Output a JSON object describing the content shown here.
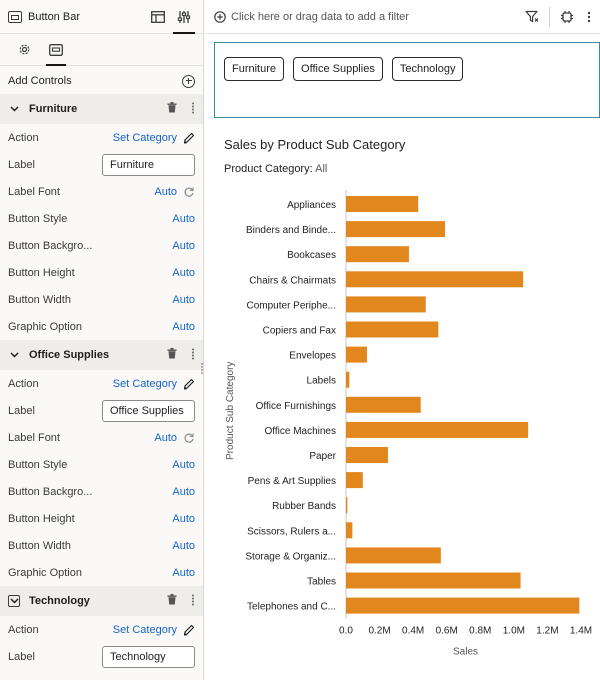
{
  "panel": {
    "title": "Button Bar",
    "add_controls_label": "Add Controls"
  },
  "sections": [
    {
      "name": "Furniture",
      "expanded": true,
      "props": [
        {
          "label": "Action",
          "value": "Set Category",
          "kind": "link-edit"
        },
        {
          "label": "Label",
          "value": "Furniture",
          "kind": "input"
        },
        {
          "label": "Label Font",
          "value": "Auto",
          "kind": "link-reset"
        },
        {
          "label": "Button Style",
          "value": "Auto",
          "kind": "link"
        },
        {
          "label": "Button Backgro...",
          "value": "Auto",
          "kind": "link"
        },
        {
          "label": "Button Height",
          "value": "Auto",
          "kind": "link"
        },
        {
          "label": "Button Width",
          "value": "Auto",
          "kind": "link"
        },
        {
          "label": "Graphic Option",
          "value": "Auto",
          "kind": "link"
        }
      ]
    },
    {
      "name": "Office Supplies",
      "expanded": true,
      "props": [
        {
          "label": "Action",
          "value": "Set Category",
          "kind": "link-edit"
        },
        {
          "label": "Label",
          "value": "Office Supplies",
          "kind": "input"
        },
        {
          "label": "Label Font",
          "value": "Auto",
          "kind": "link-reset"
        },
        {
          "label": "Button Style",
          "value": "Auto",
          "kind": "link"
        },
        {
          "label": "Button Backgro...",
          "value": "Auto",
          "kind": "link"
        },
        {
          "label": "Button Height",
          "value": "Auto",
          "kind": "link"
        },
        {
          "label": "Button Width",
          "value": "Auto",
          "kind": "link"
        },
        {
          "label": "Graphic Option",
          "value": "Auto",
          "kind": "link"
        }
      ]
    },
    {
      "name": "Technology",
      "expanded": true,
      "props": [
        {
          "label": "Action",
          "value": "Set Category",
          "kind": "link-edit"
        },
        {
          "label": "Label",
          "value": "Technology",
          "kind": "input"
        }
      ]
    }
  ],
  "filter_bar": {
    "placeholder": "Click here or drag data to add a filter"
  },
  "button_bar": {
    "buttons": [
      "Furniture",
      "Office Supplies",
      "Technology"
    ]
  },
  "chart": {
    "title": "Sales by Product Sub Category",
    "filter_label": "Product Category:",
    "filter_value": "All"
  },
  "colors": {
    "bar": "#e2861e",
    "link": "#1464c8",
    "section_bg": "#efedea"
  },
  "chart_data": {
    "type": "bar",
    "orientation": "horizontal",
    "title": "Sales by Product Sub Category",
    "xlabel": "Sales",
    "ylabel": "Product Sub Category",
    "categories": [
      "Appliances",
      "Binders and Binde...",
      "Bookcases",
      "Chairs & Chairmats",
      "Computer Periphe...",
      "Copiers and Fax",
      "Envelopes",
      "Labels",
      "Office Furnishings",
      "Office Machines",
      "Paper",
      "Pens & Art Supplies",
      "Rubber Bands",
      "Scissors, Rulers a...",
      "Storage & Organiz...",
      "Tables",
      "Telephones and C..."
    ],
    "values": [
      430000,
      590000,
      375000,
      1055000,
      475000,
      550000,
      125000,
      20000,
      445000,
      1085000,
      250000,
      100000,
      8000,
      38000,
      565000,
      1040000,
      1390000
    ],
    "xlim": [
      0,
      1400000
    ],
    "xticks": [
      "0.0",
      "0.2M",
      "0.4M",
      "0.6M",
      "0.8M",
      "1.0M",
      "1.2M",
      "1.4M"
    ],
    "grid": false,
    "color": "#e2861e"
  }
}
